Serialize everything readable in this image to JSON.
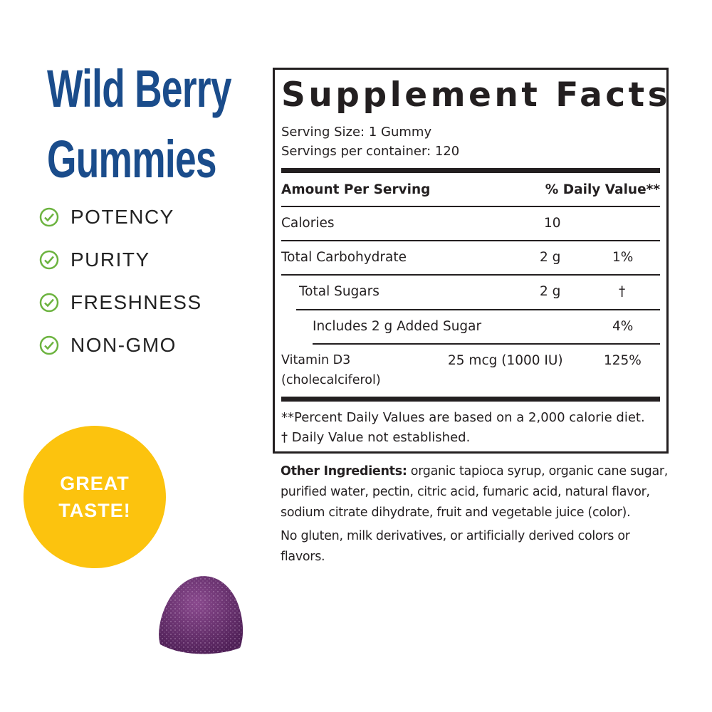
{
  "product": {
    "title_line1": "Wild Berry",
    "title_line2": "Gummies",
    "title_color": "#1a4c8b"
  },
  "features": [
    {
      "label": "POTENCY",
      "icon": "check-circle-icon"
    },
    {
      "label": "PURITY",
      "icon": "check-circle-icon"
    },
    {
      "label": "FRESHNESS",
      "icon": "check-circle-icon"
    },
    {
      "label": "NON-GMO",
      "icon": "check-circle-icon"
    }
  ],
  "check_color": "#6cb33f",
  "badge": {
    "line1": "GREAT",
    "line2": "TASTE!",
    "color": "#fcc30e"
  },
  "facts": {
    "title": "Supplement Facts",
    "serving_size": "Serving Size: 1 Gummy",
    "servings_per_container": "Servings per container: 120",
    "header_amount": "Amount Per Serving",
    "header_dv": "% Daily Value**",
    "rows": [
      {
        "name": "Calories",
        "amount": "10",
        "dv": ""
      },
      {
        "name": "Total Carbohydrate",
        "amount": "2 g",
        "dv": "1%"
      },
      {
        "name": "Total Sugars",
        "amount": "2 g",
        "dv": "†"
      },
      {
        "name": "Includes 2 g Added Sugar",
        "amount": "",
        "dv": "4%"
      },
      {
        "name": "Vitamin D3",
        "name2": "(cholecalciferol)",
        "amount": "25 mcg (1000 IU)",
        "dv": "125%"
      }
    ],
    "footnote1": "**Percent Daily Values are based on a 2,000 calorie diet.",
    "footnote2": "†  Daily Value not established."
  },
  "ingredients": {
    "label": "Other Ingredients:",
    "text": " organic tapioca syrup, organic cane sugar, purified water, pectin, citric acid, fumaric acid, natural flavor, sodium citrate dihydrate, fruit and vegetable juice (color).",
    "note": "No gluten, milk derivatives, or artificially derived colors or flavors."
  }
}
